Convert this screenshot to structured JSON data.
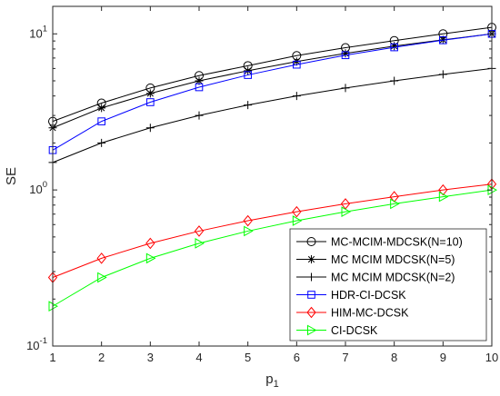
{
  "chart_data": {
    "type": "line",
    "xlabel": "p",
    "xlabel_subscript": "1",
    "ylabel": "SE",
    "x": [
      1,
      2,
      3,
      4,
      5,
      6,
      7,
      8,
      9,
      10
    ],
    "xlim": [
      1,
      10
    ],
    "ylim": [
      0.1,
      15
    ],
    "yscale": "log",
    "x_ticks": [
      "1",
      "2",
      "3",
      "4",
      "5",
      "6",
      "7",
      "8",
      "9",
      "10"
    ],
    "y_ticks": [
      {
        "value": 0.1,
        "base": "10",
        "exp": "-1"
      },
      {
        "value": 1,
        "base": "10",
        "exp": "0"
      },
      {
        "value": 10,
        "base": "10",
        "exp": "1"
      }
    ],
    "grid": false,
    "legend_position": "bottom-right",
    "series": [
      {
        "name": "MC-MCIM-MDCSK(N=10)",
        "color": "#000000",
        "marker": "circle",
        "values": [
          2.75,
          3.6,
          4.5,
          5.4,
          6.25,
          7.25,
          8.15,
          9.05,
          10.0,
          11.0
        ]
      },
      {
        "name": "MC MCIM MDCSK(N=5)",
        "color": "#000000",
        "marker": "star",
        "values": [
          2.5,
          3.35,
          4.15,
          5.0,
          5.8,
          6.65,
          7.5,
          8.35,
          9.15,
          10.0
        ]
      },
      {
        "name": "MC MCIM MDCSK(N=2)",
        "color": "#000000",
        "marker": "plus",
        "values": [
          1.5,
          2.0,
          2.5,
          3.0,
          3.5,
          4.0,
          4.5,
          5.0,
          5.5,
          6.0
        ]
      },
      {
        "name": "HDR-CI-DCSK",
        "color": "#0000ff",
        "marker": "square",
        "values": [
          1.8,
          2.75,
          3.65,
          4.55,
          5.45,
          6.35,
          7.3,
          8.2,
          9.1,
          10.0
        ]
      },
      {
        "name": "HIM-MC-DCSK",
        "color": "#ff0000",
        "marker": "diamond",
        "values": [
          0.275,
          0.365,
          0.455,
          0.545,
          0.635,
          0.725,
          0.815,
          0.905,
          1.0,
          1.09
        ]
      },
      {
        "name": "CI-DCSK",
        "color": "#00ff00",
        "marker": "triangle-right",
        "values": [
          0.18,
          0.275,
          0.365,
          0.455,
          0.545,
          0.635,
          0.725,
          0.815,
          0.905,
          1.0
        ]
      }
    ]
  }
}
